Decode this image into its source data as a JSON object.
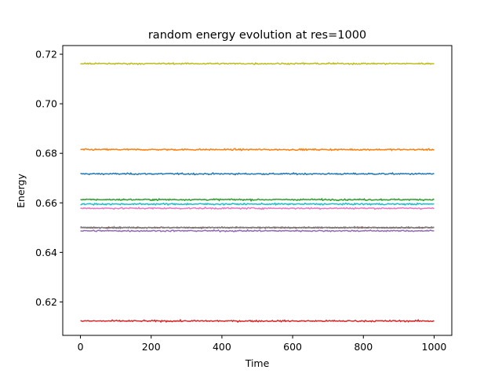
{
  "chart_data": {
    "type": "line",
    "title": "random energy evolution at res=1000",
    "xlabel": "Time",
    "ylabel": "Energy",
    "xlim": [
      -50,
      1050
    ],
    "ylim": [
      0.6065,
      0.7235
    ],
    "xticks": [
      0,
      200,
      400,
      600,
      800,
      1000
    ],
    "yticks": [
      0.62,
      0.64,
      0.66,
      0.68,
      0.7,
      0.72
    ],
    "xtick_labels": [
      "0",
      "200",
      "400",
      "600",
      "800",
      "1000"
    ],
    "ytick_labels": [
      "0.62",
      "0.64",
      "0.66",
      "0.68",
      "0.70",
      "0.72"
    ],
    "x": [
      0,
      1000
    ],
    "grid": false,
    "series": [
      {
        "color": "#1f77b4",
        "level": 0.6717,
        "noise": 0.0003
      },
      {
        "color": "#ff7f0e",
        "level": 0.6815,
        "noise": 0.0003
      },
      {
        "color": "#2ca02c",
        "level": 0.6613,
        "noise": 0.0003
      },
      {
        "color": "#d62728",
        "level": 0.6123,
        "noise": 0.0003
      },
      {
        "color": "#9467bd",
        "level": 0.6487,
        "noise": 0.0003
      },
      {
        "color": "#8c564b",
        "level": 0.65,
        "noise": 0.0002
      },
      {
        "color": "#e377c2",
        "level": 0.6578,
        "noise": 0.0003
      },
      {
        "color": "#7f7f7f",
        "level": 0.65,
        "noise": 0.0003
      },
      {
        "color": "#bcbd22",
        "level": 0.7162,
        "noise": 0.0003
      },
      {
        "color": "#17becf",
        "level": 0.6595,
        "noise": 0.0003
      }
    ]
  }
}
